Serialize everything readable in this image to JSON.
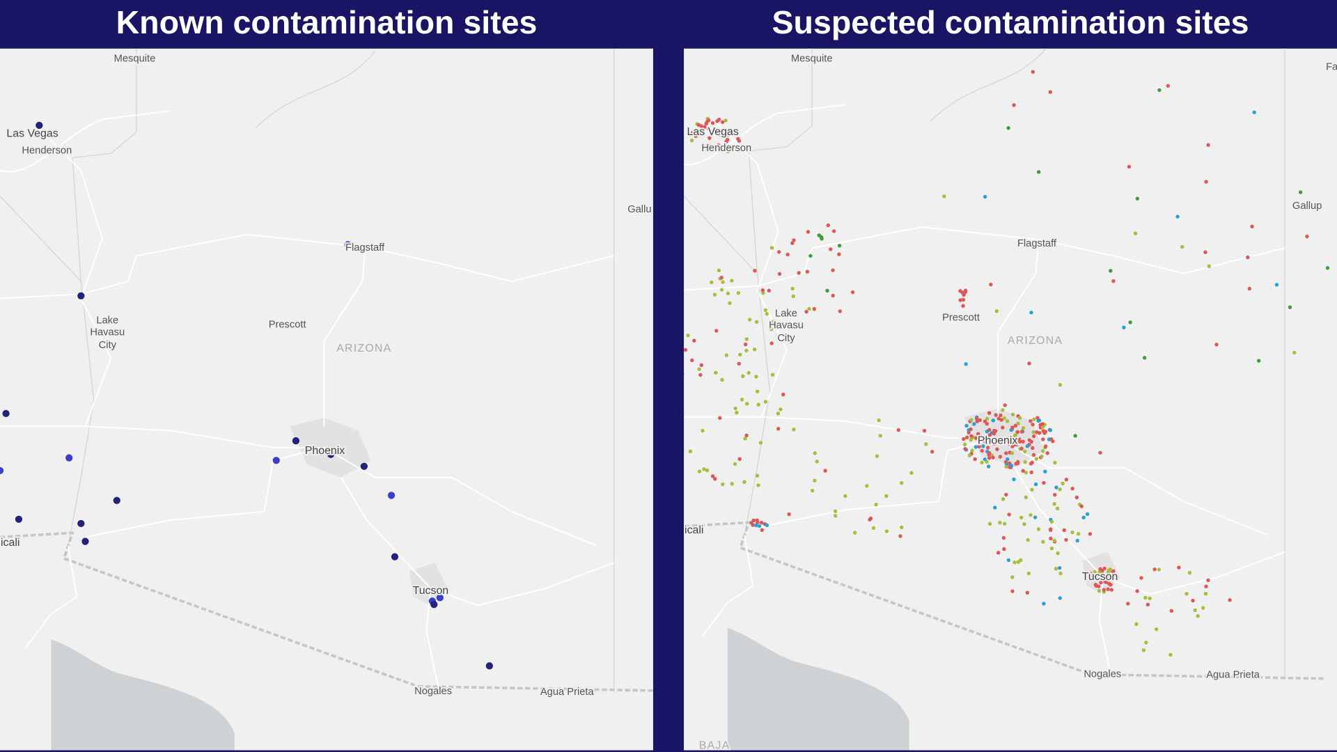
{
  "panels": [
    {
      "title": "Known contamination sites",
      "labels": [
        "Mesquite",
        "Las Vegas",
        "Henderson",
        "Lake",
        "Havasu",
        "City",
        "Prescott",
        "ARIZONA",
        "Flagstaff",
        "Phoenix",
        "Gallu",
        "icali",
        "Tucson",
        "Nogales",
        "Agua Prieta"
      ]
    },
    {
      "title": "Suspected contamination sites",
      "labels": [
        "Mesquite",
        "Las Vegas",
        "Henderson",
        "Lake",
        "Havasu",
        "City",
        "Prescott",
        "ARIZONA",
        "Flagstaff",
        "Phoenix",
        "Gallup",
        "icali",
        "Tucson",
        "Nogales",
        "Agua Prieta",
        "BAJA",
        "Fa"
      ]
    }
  ]
}
